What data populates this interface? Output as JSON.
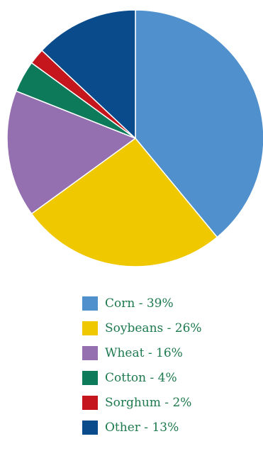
{
  "chart_data": {
    "type": "pie",
    "categories": [
      "Corn",
      "Soybeans",
      "Wheat",
      "Cotton",
      "Sorghum",
      "Other"
    ],
    "values": [
      39,
      26,
      16,
      4,
      2,
      13
    ],
    "colors": [
      "#4f90cd",
      "#f0c800",
      "#9470b0",
      "#0d7a5a",
      "#c4161c",
      "#0a4b8c"
    ],
    "legend": {
      "placement": "bottom",
      "entries": [
        "Corn - 39%",
        "Soybeans - 26%",
        "Wheat - 16%",
        "Cotton - 4%",
        "Sorghum - 2%",
        "Other - 13%"
      ]
    }
  }
}
